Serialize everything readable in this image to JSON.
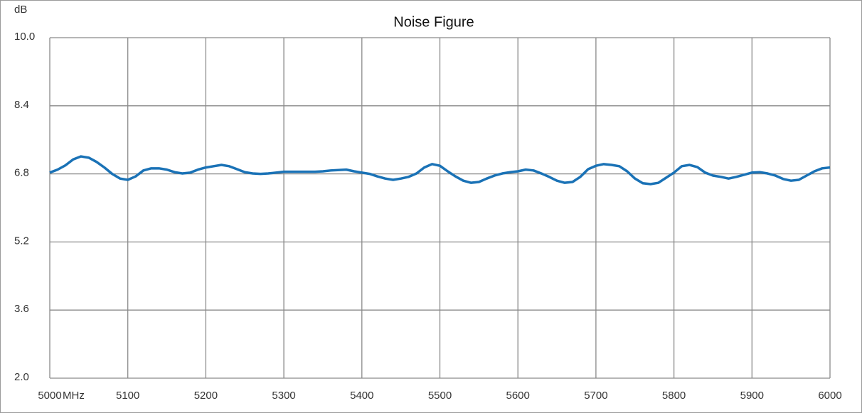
{
  "chart_data": {
    "type": "line",
    "title": "Noise Figure",
    "ylabel": "dB",
    "xlabel": "MHz",
    "xlim": [
      5000,
      6000
    ],
    "xticks": [
      5000,
      5100,
      5200,
      5300,
      5400,
      5500,
      5600,
      5700,
      5800,
      5900,
      6000
    ],
    "ylim": [
      2,
      10
    ],
    "yticks": [
      {
        "value": 2,
        "label": "2.0"
      },
      3.6,
      5.2,
      6.8,
      8.4,
      {
        "value": 10,
        "label": "10.0"
      }
    ],
    "grid": true,
    "x": [
      5000,
      5010,
      5020,
      5030,
      5040,
      5050,
      5060,
      5070,
      5080,
      5090,
      5100,
      5110,
      5120,
      5130,
      5140,
      5150,
      5160,
      5170,
      5180,
      5190,
      5200,
      5210,
      5220,
      5230,
      5240,
      5250,
      5260,
      5270,
      5280,
      5290,
      5300,
      5320,
      5340,
      5350,
      5360,
      5380,
      5390,
      5400,
      5410,
      5420,
      5430,
      5440,
      5450,
      5460,
      5470,
      5480,
      5490,
      5500,
      5510,
      5520,
      5530,
      5540,
      5550,
      5560,
      5570,
      5580,
      5590,
      5600,
      5610,
      5620,
      5630,
      5640,
      5650,
      5660,
      5670,
      5680,
      5690,
      5700,
      5710,
      5720,
      5730,
      5740,
      5750,
      5760,
      5770,
      5780,
      5790,
      5800,
      5810,
      5820,
      5830,
      5840,
      5850,
      5860,
      5870,
      5880,
      5890,
      5900,
      5910,
      5920,
      5930,
      5940,
      5950,
      5960,
      5970,
      5980,
      5990,
      6000
    ],
    "series": [
      {
        "name": "Noise Figure",
        "color": "#1a72b6",
        "values": [
          6.83,
          6.9,
          7.0,
          7.14,
          7.21,
          7.18,
          7.08,
          6.95,
          6.8,
          6.69,
          6.66,
          6.74,
          6.88,
          6.93,
          6.93,
          6.9,
          6.84,
          6.81,
          6.83,
          6.9,
          6.95,
          6.98,
          7.01,
          6.98,
          6.91,
          6.84,
          6.81,
          6.8,
          6.81,
          6.83,
          6.85,
          6.85,
          6.85,
          6.86,
          6.88,
          6.9,
          6.86,
          6.83,
          6.8,
          6.74,
          6.69,
          6.66,
          6.69,
          6.73,
          6.81,
          6.95,
          7.03,
          6.99,
          6.86,
          6.74,
          6.64,
          6.59,
          6.61,
          6.69,
          6.76,
          6.81,
          6.84,
          6.86,
          6.9,
          6.88,
          6.81,
          6.73,
          6.64,
          6.59,
          6.61,
          6.73,
          6.91,
          6.99,
          7.03,
          7.01,
          6.98,
          6.86,
          6.69,
          6.58,
          6.56,
          6.59,
          6.71,
          6.83,
          6.98,
          7.01,
          6.96,
          6.83,
          6.76,
          6.73,
          6.69,
          6.73,
          6.78,
          6.83,
          6.84,
          6.81,
          6.76,
          6.68,
          6.64,
          6.66,
          6.76,
          6.86,
          6.93,
          6.95
        ]
      }
    ]
  }
}
